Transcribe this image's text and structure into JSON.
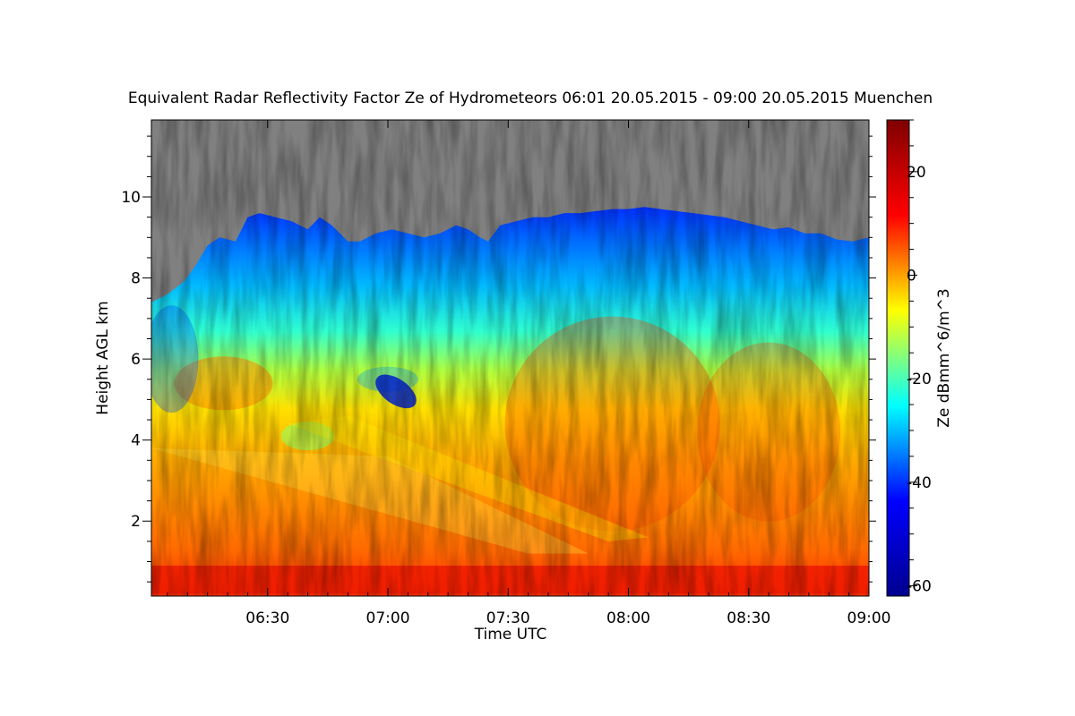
{
  "chart_data": {
    "type": "heatmap",
    "title": "Equivalent Radar Reflectivity Factor Ze of Hydrometeors   06:01 20.05.2015 - 09:00 20.05.2015 Muenchen",
    "xlabel": "Time UTC",
    "ylabel": "Height AGL km",
    "colorbar_label": "Ze dBmm^6/m^3",
    "x_range_minutes": [
      361,
      540
    ],
    "x_ticks": [
      {
        "minutes": 390,
        "label": "06:30"
      },
      {
        "minutes": 420,
        "label": "07:00"
      },
      {
        "minutes": 450,
        "label": "07:30"
      },
      {
        "minutes": 480,
        "label": "08:00"
      },
      {
        "minutes": 510,
        "label": "08:30"
      },
      {
        "minutes": 540,
        "label": "09:00"
      }
    ],
    "ylim": [
      0.15,
      11.9
    ],
    "y_ticks": [
      2,
      4,
      6,
      8,
      10
    ],
    "y_tick_labels": [
      "2",
      "4",
      "6",
      "8",
      "10"
    ],
    "clim": [
      -62,
      30
    ],
    "colorbar_ticks": [
      20,
      0,
      -20,
      -40,
      -60
    ],
    "colorbar_tick_labels": [
      "20",
      "0",
      "-20",
      "-40",
      "-60"
    ],
    "no_data_color": "#808080",
    "colormap": [
      "#00008f",
      "#0000ff",
      "#00ffff",
      "#ffff00",
      "#ff0000",
      "#800000"
    ],
    "cloud_top_km": [
      [
        361,
        7.4
      ],
      [
        365,
        7.6
      ],
      [
        369,
        7.9
      ],
      [
        372,
        8.3
      ],
      [
        375,
        8.8
      ],
      [
        378,
        9.0
      ],
      [
        382,
        8.9
      ],
      [
        385,
        9.5
      ],
      [
        388,
        9.6
      ],
      [
        392,
        9.5
      ],
      [
        396,
        9.4
      ],
      [
        400,
        9.2
      ],
      [
        403,
        9.5
      ],
      [
        406,
        9.3
      ],
      [
        410,
        8.9
      ],
      [
        413,
        8.9
      ],
      [
        417,
        9.1
      ],
      [
        421,
        9.2
      ],
      [
        425,
        9.1
      ],
      [
        429,
        9.0
      ],
      [
        433,
        9.1
      ],
      [
        437,
        9.3
      ],
      [
        440,
        9.2
      ],
      [
        443,
        9.0
      ],
      [
        445,
        8.9
      ],
      [
        448,
        9.3
      ],
      [
        452,
        9.4
      ],
      [
        456,
        9.5
      ],
      [
        460,
        9.5
      ],
      [
        464,
        9.6
      ],
      [
        468,
        9.6
      ],
      [
        472,
        9.65
      ],
      [
        476,
        9.7
      ],
      [
        480,
        9.7
      ],
      [
        484,
        9.75
      ],
      [
        488,
        9.7
      ],
      [
        492,
        9.65
      ],
      [
        496,
        9.6
      ],
      [
        500,
        9.55
      ],
      [
        504,
        9.5
      ],
      [
        508,
        9.4
      ],
      [
        512,
        9.3
      ],
      [
        516,
        9.2
      ],
      [
        520,
        9.25
      ],
      [
        524,
        9.1
      ],
      [
        528,
        9.1
      ],
      [
        532,
        8.95
      ],
      [
        536,
        8.9
      ],
      [
        540,
        9.0
      ]
    ],
    "melting_layer_km": [
      0.2,
      0.9
    ]
  }
}
